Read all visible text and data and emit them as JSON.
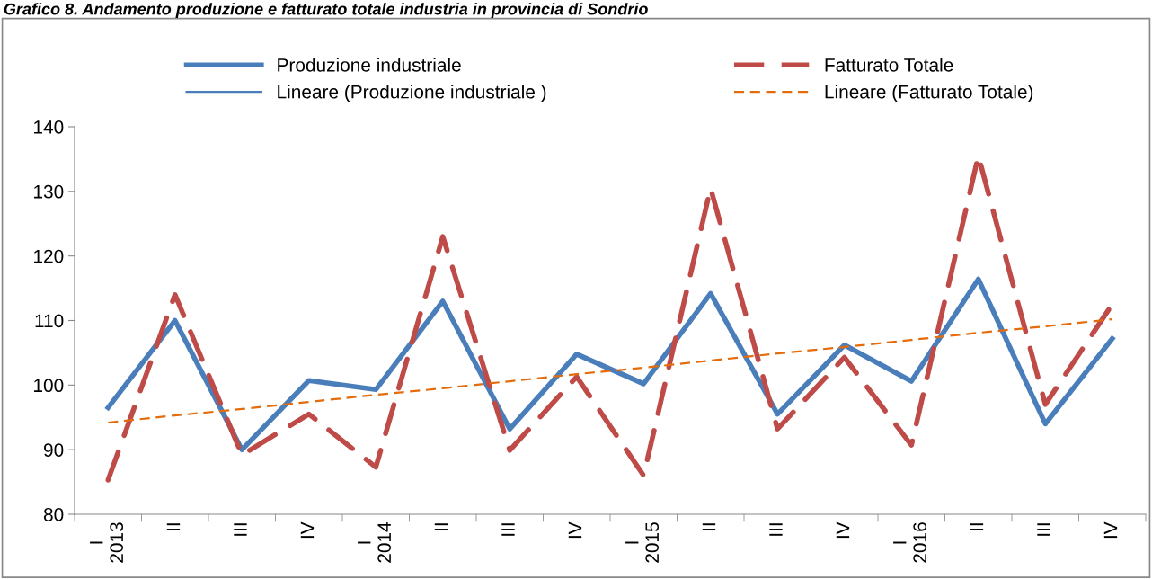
{
  "chart_data": {
    "type": "line",
    "title": "Grafico 8. Andamento produzione e fatturato totale industria in provincia di Sondrio",
    "categories": [
      "I\n2013",
      "II",
      "III",
      "IV",
      "I\n2014",
      "II",
      "III",
      "IV",
      "I\n2015",
      "II",
      "III",
      "IV",
      "I\n2016",
      "II",
      "III",
      "IV"
    ],
    "series": [
      {
        "name": "Produzione industriale",
        "color": "#4a7ebb",
        "line_style": "solid",
        "values": [
          96.5,
          110,
          90,
          100.7,
          99.3,
          113,
          93.2,
          104.8,
          100.2,
          114.2,
          95.5,
          106.2,
          100.6,
          116.4,
          94,
          107.2
        ]
      },
      {
        "name": "Lineare (Produzione industriale )",
        "color": "#4a7ebb",
        "line_style": "solid",
        "values": [
          null,
          null,
          null,
          null,
          null,
          null,
          null,
          null,
          null,
          null,
          null,
          null,
          null,
          null,
          null,
          null
        ]
      },
      {
        "name": "Fatturato Totale",
        "color": "#be4b48",
        "line_style": "dashed",
        "values": [
          85.3,
          114,
          89.2,
          95.5,
          87.3,
          123,
          89.9,
          101.3,
          86,
          130.5,
          93.2,
          104.3,
          90.7,
          135.5,
          97,
          112.5
        ]
      },
      {
        "name": "Lineare (Fatturato Totale)",
        "color": "#e46c0a",
        "line_style": "dashed",
        "values": [
          94.2,
          95.3,
          96.3,
          97.4,
          98.5,
          99.5,
          100.6,
          101.7,
          102.7,
          103.8,
          104.9,
          105.9,
          107,
          108.1,
          109.1,
          110.2
        ]
      }
    ],
    "ylim": [
      80,
      140
    ],
    "yticks": [
      80,
      90,
      100,
      110,
      120,
      130,
      140
    ],
    "grid": false,
    "legend": "top",
    "marker": "none"
  }
}
